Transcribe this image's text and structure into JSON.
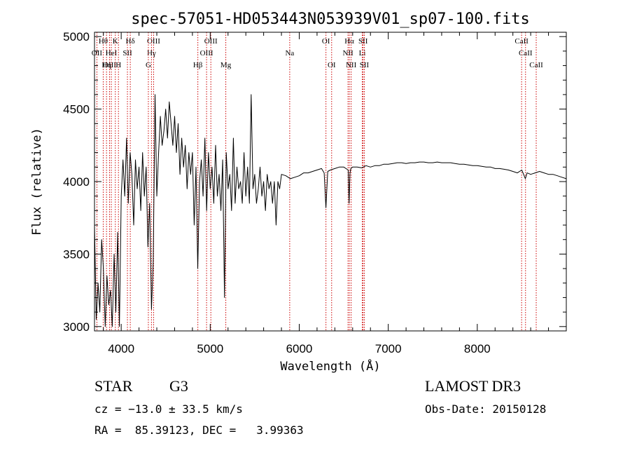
{
  "chart_data": {
    "type": "line",
    "title": "spec-57051-HD053443N053939V01_sp07-100.fits",
    "xlabel": "Wavelength (Å)",
    "ylabel": "Flux (relative)",
    "xlim": [
      3700,
      9000
    ],
    "ylim": [
      2970,
      5030
    ],
    "xticks": [
      4000,
      5000,
      6000,
      7000,
      8000
    ],
    "xtick_labels": [
      "4000",
      "5000",
      "6000",
      "7000",
      "8000"
    ],
    "yticks": [
      3000,
      3500,
      4000,
      4500,
      5000
    ],
    "ytick_labels": [
      "3000",
      "3500",
      "4000",
      "4500",
      "5000"
    ],
    "grid": false,
    "series_color": "#000000",
    "line_color": "#cc0000",
    "lines": [
      {
        "name": "Hθ",
        "x": 3798,
        "row": 1
      },
      {
        "name": "OII",
        "x": 3727,
        "row": 2
      },
      {
        "name": "OIII",
        "x": 3869,
        "row": 3
      },
      {
        "name": "Hη",
        "x": 3835,
        "row": 3
      },
      {
        "name": "HeI",
        "x": 3889,
        "row": 2
      },
      {
        "name": "K",
        "x": 3934,
        "row": 1
      },
      {
        "name": "H",
        "x": 3969,
        "row": 3
      },
      {
        "name": "SII",
        "x": 4070,
        "row": 2
      },
      {
        "name": "Hδ",
        "x": 4102,
        "row": 1
      },
      {
        "name": "OIII",
        "x": 4364,
        "row": 1
      },
      {
        "name": "Hγ",
        "x": 4340,
        "row": 2
      },
      {
        "name": "G",
        "x": 4305,
        "row": 3
      },
      {
        "name": "Hβ",
        "x": 4861,
        "row": 3
      },
      {
        "name": "OIII",
        "x": 5007,
        "row": 1
      },
      {
        "name": "OIII",
        "x": 4959,
        "row": 2
      },
      {
        "name": "Mg",
        "x": 5175,
        "row": 3
      },
      {
        "name": "Na",
        "x": 5893,
        "row": 2
      },
      {
        "name": "OI",
        "x": 6300,
        "row": 1
      },
      {
        "name": "OI",
        "x": 6364,
        "row": 3
      },
      {
        "name": "Hα",
        "x": 6563,
        "row": 1
      },
      {
        "name": "NII",
        "x": 6548,
        "row": 2
      },
      {
        "name": "NII",
        "x": 6583,
        "row": 3
      },
      {
        "name": "SII",
        "x": 6717,
        "row": 1
      },
      {
        "name": "Li",
        "x": 6708,
        "row": 2
      },
      {
        "name": "SII",
        "x": 6731,
        "row": 3
      },
      {
        "name": "CaII",
        "x": 8498,
        "row": 1
      },
      {
        "name": "CaII",
        "x": 8542,
        "row": 2
      },
      {
        "name": "CaII",
        "x": 8662,
        "row": 3
      }
    ],
    "spectrum": {
      "x": [
        3700,
        3720,
        3740,
        3760,
        3780,
        3800,
        3820,
        3840,
        3860,
        3880,
        3900,
        3920,
        3940,
        3960,
        3980,
        4000,
        4020,
        4040,
        4060,
        4080,
        4100,
        4120,
        4140,
        4160,
        4180,
        4200,
        4220,
        4240,
        4260,
        4280,
        4300,
        4320,
        4340,
        4360,
        4380,
        4400,
        4420,
        4440,
        4460,
        4480,
        4500,
        4520,
        4540,
        4560,
        4580,
        4600,
        4620,
        4640,
        4660,
        4680,
        4700,
        4720,
        4740,
        4760,
        4780,
        4800,
        4820,
        4840,
        4860,
        4880,
        4900,
        4920,
        4940,
        4960,
        4980,
        5000,
        5020,
        5040,
        5060,
        5080,
        5100,
        5120,
        5140,
        5160,
        5180,
        5200,
        5220,
        5240,
        5260,
        5280,
        5300,
        5320,
        5340,
        5360,
        5380,
        5400,
        5420,
        5440,
        5460,
        5480,
        5500,
        5520,
        5540,
        5560,
        5580,
        5600,
        5620,
        5640,
        5660,
        5680,
        5700,
        5720,
        5740,
        5760,
        5780,
        5800,
        5850,
        5900,
        5950,
        6000,
        6050,
        6100,
        6150,
        6200,
        6250,
        6280,
        6300,
        6320,
        6350,
        6400,
        6450,
        6500,
        6550,
        6560,
        6570,
        6580,
        6600,
        6650,
        6700,
        6750,
        6800,
        6850,
        6900,
        6950,
        7000,
        7050,
        7100,
        7150,
        7200,
        7250,
        7300,
        7350,
        7400,
        7450,
        7500,
        7550,
        7600,
        7650,
        7700,
        7750,
        7800,
        7850,
        7900,
        7950,
        8000,
        8050,
        8100,
        8150,
        8200,
        8250,
        8300,
        8350,
        8400,
        8450,
        8500,
        8520,
        8540,
        8560,
        8600,
        8650,
        8700,
        8750,
        8800,
        8850,
        8900,
        8950,
        9000
      ],
      "y": [
        3700,
        3050,
        3300,
        3100,
        3600,
        3400,
        3000,
        3350,
        3150,
        3250,
        3000,
        3500,
        3100,
        3650,
        3000,
        3900,
        4150,
        3900,
        4300,
        3850,
        4200,
        4050,
        3700,
        4150,
        3950,
        4100,
        3800,
        4200,
        3900,
        4100,
        3550,
        3850,
        3120,
        3450,
        4600,
        3900,
        4200,
        4450,
        4250,
        4350,
        4500,
        4300,
        4550,
        4400,
        4250,
        4450,
        4200,
        4400,
        4050,
        4300,
        4100,
        4250,
        3950,
        4200,
        4050,
        4200,
        3700,
        4100,
        3400,
        4000,
        4150,
        3900,
        4300,
        3800,
        4200,
        3950,
        4100,
        3850,
        4250,
        3900,
        4050,
        3800,
        4150,
        3200,
        4200,
        3950,
        4050,
        3800,
        4300,
        3850,
        4100,
        3950,
        4000,
        3850,
        4200,
        3900,
        4100,
        3850,
        4600,
        3950,
        4050,
        3850,
        3950,
        4100,
        3900,
        4000,
        3800,
        4050,
        3950,
        4000,
        3850,
        4000,
        3700,
        4000,
        3950,
        4050,
        4040,
        4020,
        4030,
        4040,
        4060,
        4060,
        4070,
        4080,
        4090,
        4060,
        3820,
        4070,
        4080,
        4090,
        4100,
        4100,
        4080,
        3850,
        4060,
        4090,
        4100,
        4100,
        4095,
        4110,
        4100,
        4110,
        4110,
        4120,
        4120,
        4125,
        4130,
        4130,
        4125,
        4130,
        4130,
        4135,
        4135,
        4130,
        4130,
        4135,
        4130,
        4130,
        4130,
        4125,
        4120,
        4120,
        4115,
        4110,
        4110,
        4105,
        4100,
        4100,
        4090,
        4090,
        4085,
        4080,
        4070,
        4060,
        4080,
        4050,
        4020,
        4060,
        4050,
        4060,
        4070,
        4060,
        4050,
        4050,
        4040,
        4030,
        4020
      ]
    }
  },
  "info": {
    "object_class": "STAR",
    "subclass": "G3",
    "survey": "LAMOST DR3",
    "redshift": "cz = −13.0 ± 33.5 km/s",
    "obs_date": "Obs-Date: 20150128",
    "coords": "RA =  85.39123, DEC =   3.99363"
  }
}
